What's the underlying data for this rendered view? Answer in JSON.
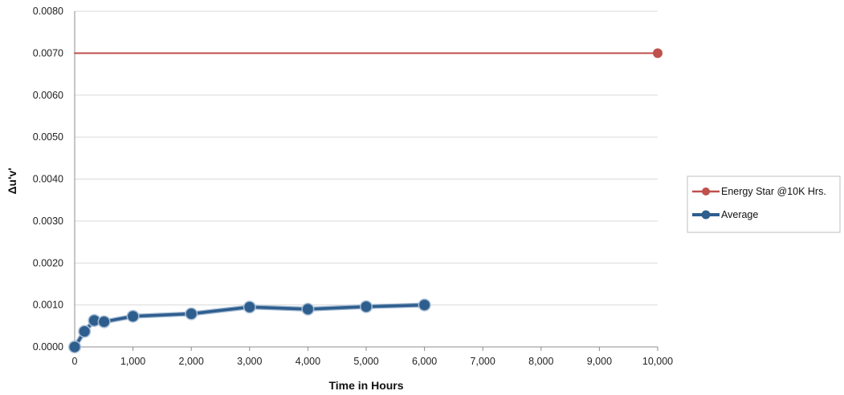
{
  "chart_data": {
    "type": "line",
    "title": "",
    "xlabel": "Time in Hours",
    "ylabel": "Δu'v'",
    "xlim": [
      0,
      10000
    ],
    "ylim": [
      0,
      0.008
    ],
    "x_ticks": [
      0,
      1000,
      2000,
      3000,
      4000,
      5000,
      6000,
      7000,
      8000,
      9000,
      10000
    ],
    "x_tick_labels": [
      "0",
      "1,000",
      "2,000",
      "3,000",
      "4,000",
      "5,000",
      "6,000",
      "7,000",
      "8,000",
      "9,000",
      "10,000"
    ],
    "y_ticks": [
      0,
      0.001,
      0.002,
      0.003,
      0.004,
      0.005,
      0.006,
      0.007,
      0.008
    ],
    "y_tick_labels": [
      "0.0000",
      "0.0010",
      "0.0020",
      "0.0030",
      "0.0040",
      "0.0050",
      "0.0060",
      "0.0070",
      "0.0080"
    ],
    "grid": "horizontal",
    "legend_position": "right",
    "series": [
      {
        "name": "Energy Star @10K Hrs.",
        "color": "#c0504d",
        "line_only_endpoints": true,
        "x": [
          0,
          10000
        ],
        "y": [
          0.007,
          0.007
        ],
        "markers": [
          10000
        ]
      },
      {
        "name": "Average",
        "color": "#2e5e8e",
        "x": [
          0,
          168,
          336,
          504,
          1000,
          2000,
          3000,
          4000,
          5000,
          6000
        ],
        "y": [
          0.0,
          0.00037,
          0.00063,
          0.0006,
          0.00073,
          0.00079,
          0.00095,
          0.0009,
          0.00096,
          0.001
        ]
      }
    ]
  }
}
